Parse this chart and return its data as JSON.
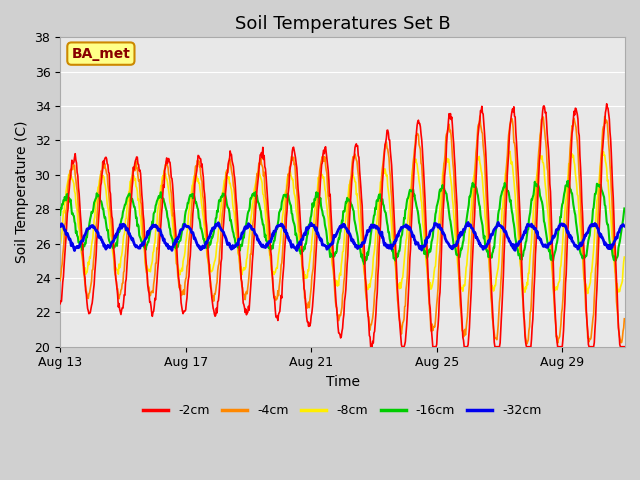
{
  "title": "Soil Temperatures Set B",
  "xlabel": "Time",
  "ylabel": "Soil Temperature (C)",
  "ylim": [
    20,
    38
  ],
  "ytick_values": [
    20,
    22,
    24,
    26,
    28,
    30,
    32,
    34,
    36,
    38
  ],
  "legend_labels": [
    "-2cm",
    "-4cm",
    "-8cm",
    "-16cm",
    "-32cm"
  ],
  "line_colors": [
    "#ff0000",
    "#ff8800",
    "#ffee00",
    "#00cc00",
    "#0000ee"
  ],
  "line_widths": [
    1.2,
    1.2,
    1.2,
    1.5,
    2.0
  ],
  "fig_bg_color": "#d0d0d0",
  "plot_bg_color": "#e8e8e8",
  "annotation_text": "BA_met",
  "annotation_bg": "#ffff88",
  "annotation_border": "#cc8800",
  "annotation_text_color": "#880000",
  "grid_color": "#ffffff",
  "title_fontsize": 13,
  "label_fontsize": 10,
  "tick_fontsize": 9,
  "legend_fontsize": 9
}
